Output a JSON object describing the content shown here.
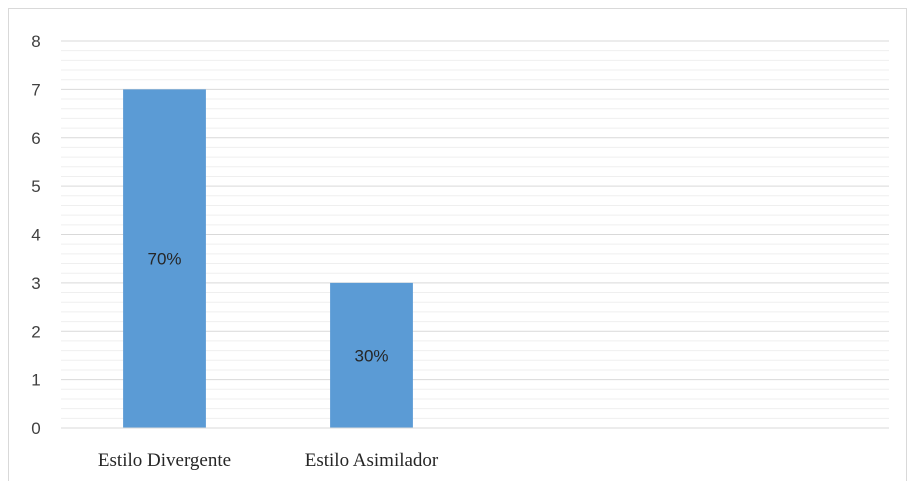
{
  "chart_data": {
    "type": "bar",
    "categories": [
      "Estilo Divergente",
      "Estilo Asimilador",
      "",
      ""
    ],
    "values": [
      7,
      3,
      null,
      null
    ],
    "data_labels": [
      "70%",
      "30%",
      "",
      ""
    ],
    "title": "",
    "xlabel": "",
    "ylabel": "",
    "ylim": [
      0,
      8
    ],
    "yticks": [
      "0",
      "1",
      "2",
      "3",
      "4",
      "5",
      "6",
      "7",
      "8"
    ],
    "grid": true,
    "legend": "none",
    "bar_color": "#5b9bd5",
    "major_grid_color": "#d9d9d9",
    "minor_grid_color": "#efefef"
  }
}
